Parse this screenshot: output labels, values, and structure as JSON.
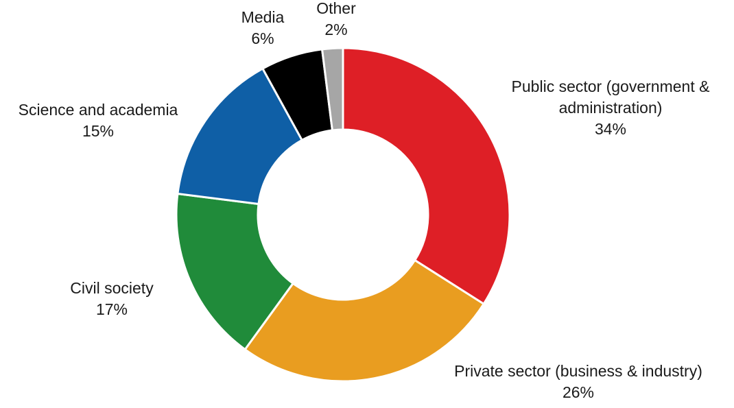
{
  "chart_data": {
    "type": "pie",
    "variant": "donut",
    "title": "",
    "legend": "none",
    "series": [
      {
        "slices": [
          {
            "label": [
              "Public sector (government &",
              "administration)"
            ],
            "value": 34,
            "value_label": "34%",
            "color": "#de1f26"
          },
          {
            "label": [
              "Private sector (business & industry)"
            ],
            "value": 26,
            "value_label": "26%",
            "color": "#e99d20"
          },
          {
            "label": [
              "Civil society"
            ],
            "value": 17,
            "value_label": "17%",
            "color": "#208b3a"
          },
          {
            "label": [
              "Science and academia"
            ],
            "value": 15,
            "value_label": "15%",
            "color": "#0f5fa6"
          },
          {
            "label": [
              "Media"
            ],
            "value": 6,
            "value_label": "6%",
            "color": "#000000"
          },
          {
            "label": [
              "Other"
            ],
            "value": 2,
            "value_label": "2%",
            "color": "#a6a6a6"
          }
        ]
      }
    ]
  }
}
